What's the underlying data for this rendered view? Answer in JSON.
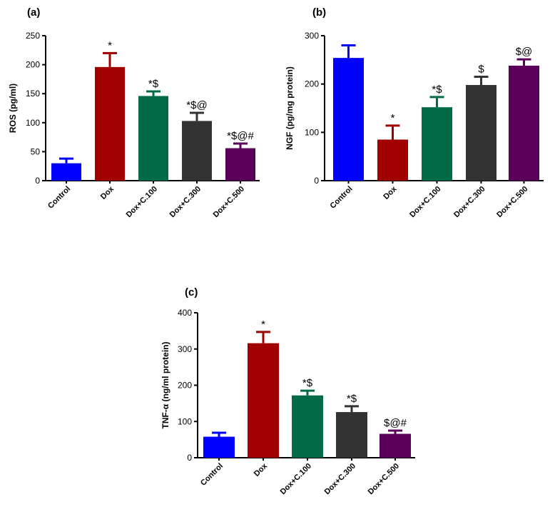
{
  "chart_data": [
    {
      "type": "bar",
      "panel_label": "(a)",
      "ylabel": "ROS (pg/ml)",
      "ylim": [
        0,
        250
      ],
      "yticks": [
        0,
        50,
        100,
        150,
        200,
        250
      ],
      "categories": [
        "Control",
        "Dox",
        "Dox+C.100",
        "Dox+C.300",
        "Dox+C.500"
      ],
      "values": [
        30,
        196,
        146,
        103,
        56
      ],
      "errors": [
        8,
        24,
        8,
        14,
        8
      ],
      "significance": [
        "",
        "*",
        "*$",
        "*$@",
        "*$@#"
      ],
      "colors": [
        "#0000ff",
        "#a00000",
        "#006b46",
        "#333333",
        "#5a005a"
      ]
    },
    {
      "type": "bar",
      "panel_label": "(b)",
      "ylabel": "NGF (pg/mg protein)",
      "ylim": [
        0,
        300
      ],
      "yticks": [
        0,
        100,
        200,
        300
      ],
      "categories": [
        "Control",
        "Dox",
        "Dox+C.100",
        "Dox+C.300",
        "Dox+C.500"
      ],
      "values": [
        254,
        85,
        152,
        198,
        238
      ],
      "errors": [
        26,
        29,
        21,
        17,
        13
      ],
      "significance": [
        "",
        "*",
        "*$",
        "$",
        "$@"
      ],
      "colors": [
        "#0000ff",
        "#a00000",
        "#006b46",
        "#333333",
        "#5a005a"
      ]
    },
    {
      "type": "bar",
      "panel_label": "(c)",
      "ylabel": "TNF-α (ng/ml protein)",
      "ylim": [
        0,
        400
      ],
      "yticks": [
        0,
        100,
        200,
        300,
        400
      ],
      "categories": [
        "Control",
        "Dox",
        "Dox+C.100",
        "Dox+C.300",
        "Dox+C.500"
      ],
      "values": [
        58,
        316,
        172,
        126,
        66
      ],
      "errors": [
        11,
        31,
        13,
        16,
        9
      ],
      "significance": [
        "",
        "*",
        "*$",
        "*$",
        "$@#"
      ],
      "colors": [
        "#0000ff",
        "#a00000",
        "#006b46",
        "#333333",
        "#5a005a"
      ]
    }
  ]
}
